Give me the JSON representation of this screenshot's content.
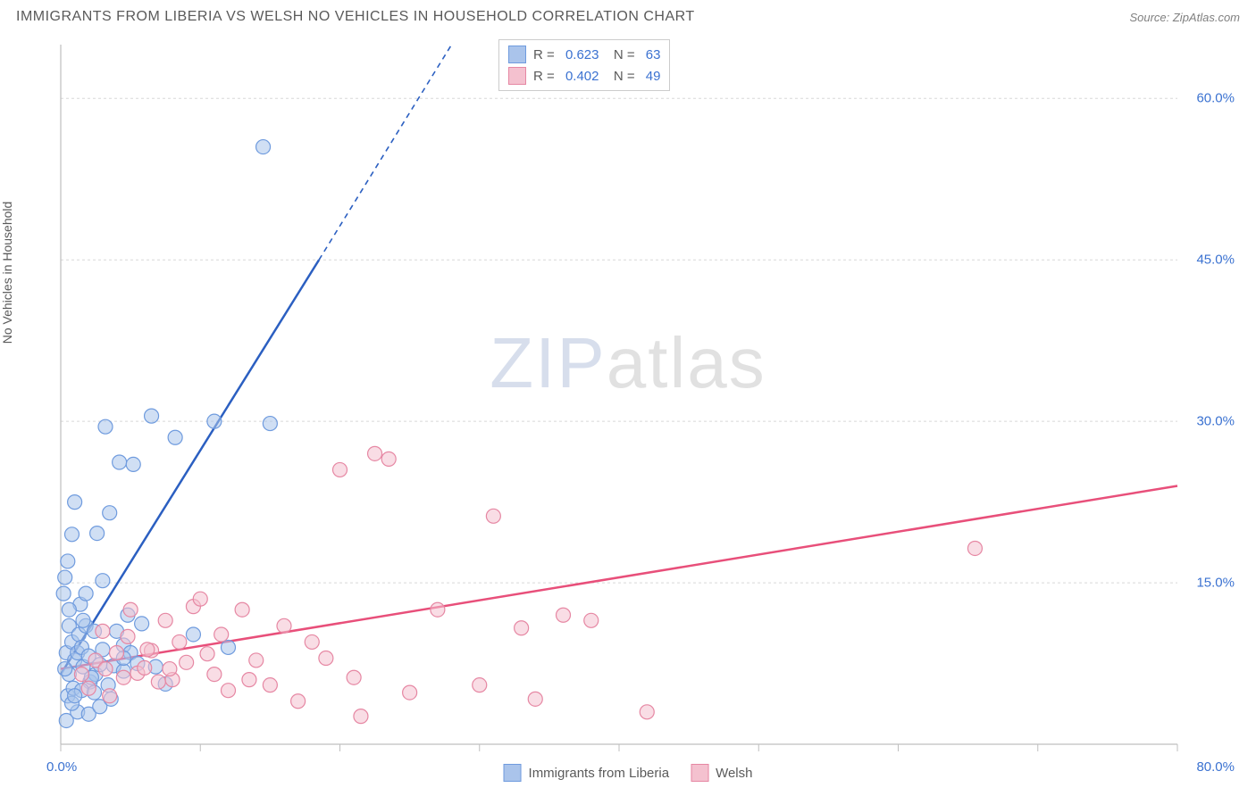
{
  "title": "IMMIGRANTS FROM LIBERIA VS WELSH NO VEHICLES IN HOUSEHOLD CORRELATION CHART",
  "source_label": "Source: ZipAtlas.com",
  "watermark": {
    "part1": "ZIP",
    "part2": "atlas"
  },
  "chart": {
    "type": "scatter",
    "background_color": "#ffffff",
    "grid_color": "#d8d8d8",
    "axis_color": "#bfbfbf",
    "tick_label_color": "#3b72d1",
    "text_color": "#5a5a5a",
    "xlim": [
      0,
      80
    ],
    "ylim": [
      0,
      65
    ],
    "x_major_ticks": [
      0,
      10,
      20,
      30,
      40,
      50,
      60,
      70,
      80
    ],
    "y_major_gridlines": [
      15,
      30,
      45,
      60
    ],
    "y_tick_labels": [
      "15.0%",
      "30.0%",
      "45.0%",
      "60.0%"
    ],
    "x_tick_label_left": "0.0%",
    "x_tick_label_right": "80.0%",
    "y_axis_label": "No Vehicles in Household",
    "marker_radius": 8,
    "marker_opacity": 0.55,
    "marker_stroke_width": 1.2,
    "line_stroke_width": 2.5,
    "series": [
      {
        "id": "liberia",
        "label": "Immigrants from Liberia",
        "R": "0.623",
        "N": "63",
        "color_fill": "#aac4eb",
        "color_stroke": "#6f9bde",
        "line_color": "#2b5fc1",
        "regression": {
          "x1": 0,
          "y1": 6.5,
          "x2": 18.5,
          "y2": 45,
          "dash_extend_x": 28,
          "dash_extend_y": 65
        },
        "points": [
          [
            0.2,
            14
          ],
          [
            0.3,
            15.5
          ],
          [
            0.4,
            8.5
          ],
          [
            0.5,
            17
          ],
          [
            0.6,
            11
          ],
          [
            0.6,
            6.5
          ],
          [
            0.8,
            9.5
          ],
          [
            0.8,
            19.5
          ],
          [
            0.5,
            4.5
          ],
          [
            0.9,
            5.2
          ],
          [
            1.0,
            22.5
          ],
          [
            1.0,
            7.8
          ],
          [
            1.2,
            8.5
          ],
          [
            1.3,
            10.2
          ],
          [
            1.4,
            13
          ],
          [
            1.5,
            9
          ],
          [
            1.6,
            7.2
          ],
          [
            1.8,
            11
          ],
          [
            2.0,
            8.2
          ],
          [
            2.1,
            5.8
          ],
          [
            2.4,
            10.5
          ],
          [
            2.5,
            6.5
          ],
          [
            2.6,
            19.6
          ],
          [
            2.8,
            7.4
          ],
          [
            3.0,
            8.8
          ],
          [
            3.0,
            15.2
          ],
          [
            3.2,
            29.5
          ],
          [
            3.4,
            5.5
          ],
          [
            3.5,
            21.5
          ],
          [
            3.8,
            7.3
          ],
          [
            4.0,
            10.5
          ],
          [
            4.2,
            26.2
          ],
          [
            4.5,
            6.8
          ],
          [
            4.5,
            9.2
          ],
          [
            4.8,
            12
          ],
          [
            5.0,
            8.5
          ],
          [
            5.5,
            7.5
          ],
          [
            5.8,
            11.2
          ],
          [
            6.5,
            30.5
          ],
          [
            6.8,
            7.2
          ],
          [
            7.5,
            5.6
          ],
          [
            8.2,
            28.5
          ],
          [
            9.5,
            10.2
          ],
          [
            11,
            30.0
          ],
          [
            12,
            9.0
          ],
          [
            14.5,
            55.5
          ],
          [
            15,
            29.8
          ],
          [
            0.4,
            2.2
          ],
          [
            1.2,
            3.0
          ],
          [
            2.0,
            2.8
          ],
          [
            2.8,
            3.5
          ],
          [
            3.6,
            4.2
          ],
          [
            4.5,
            8.0
          ],
          [
            0.8,
            3.8
          ],
          [
            1.5,
            5.0
          ],
          [
            2.2,
            6.2
          ],
          [
            0.6,
            12.5
          ],
          [
            1.8,
            14
          ],
          [
            5.2,
            26
          ],
          [
            0.3,
            7.0
          ],
          [
            1.0,
            4.5
          ],
          [
            1.6,
            11.5
          ],
          [
            2.4,
            4.8
          ]
        ]
      },
      {
        "id": "welsh",
        "label": "Welsh",
        "R": "0.402",
        "N": "49",
        "color_fill": "#f4c1cf",
        "color_stroke": "#e687a3",
        "line_color": "#e84f7a",
        "regression": {
          "x1": 0,
          "y1": 7,
          "x2": 80,
          "y2": 24
        },
        "points": [
          [
            1.5,
            6.5
          ],
          [
            2.0,
            5.2
          ],
          [
            2.5,
            7.8
          ],
          [
            3.0,
            10.5
          ],
          [
            3.5,
            4.5
          ],
          [
            4.0,
            8.5
          ],
          [
            4.5,
            6.2
          ],
          [
            5.0,
            12.5
          ],
          [
            5.5,
            6.6
          ],
          [
            6.0,
            7.1
          ],
          [
            6.5,
            8.7
          ],
          [
            7.0,
            5.8
          ],
          [
            7.5,
            11.5
          ],
          [
            8.0,
            6.0
          ],
          [
            8.5,
            9.5
          ],
          [
            9.0,
            7.6
          ],
          [
            9.5,
            12.8
          ],
          [
            10.0,
            13.5
          ],
          [
            10.5,
            8.4
          ],
          [
            11.0,
            6.5
          ],
          [
            11.5,
            10.2
          ],
          [
            12.0,
            5.0
          ],
          [
            13.0,
            12.5
          ],
          [
            14.0,
            7.8
          ],
          [
            15.0,
            5.5
          ],
          [
            16.0,
            11.0
          ],
          [
            17.0,
            4.0
          ],
          [
            18.0,
            9.5
          ],
          [
            19.0,
            8.0
          ],
          [
            20.0,
            25.5
          ],
          [
            21.0,
            6.2
          ],
          [
            22.5,
            27.0
          ],
          [
            23.5,
            26.5
          ],
          [
            21.5,
            2.6
          ],
          [
            25.0,
            4.8
          ],
          [
            27.0,
            12.5
          ],
          [
            30.0,
            5.5
          ],
          [
            31.0,
            21.2
          ],
          [
            33.0,
            10.8
          ],
          [
            34.0,
            4.2
          ],
          [
            36.0,
            12.0
          ],
          [
            38.0,
            11.5
          ],
          [
            42.0,
            3.0
          ],
          [
            65.5,
            18.2
          ],
          [
            3.2,
            7.0
          ],
          [
            4.8,
            10.0
          ],
          [
            6.2,
            8.8
          ],
          [
            7.8,
            7.0
          ],
          [
            13.5,
            6.0
          ]
        ]
      }
    ],
    "bottom_legend": [
      {
        "label": "Immigrants from Liberia",
        "fill": "#aac4eb",
        "stroke": "#6f9bde"
      },
      {
        "label": "Welsh",
        "fill": "#f4c1cf",
        "stroke": "#e687a3"
      }
    ]
  }
}
